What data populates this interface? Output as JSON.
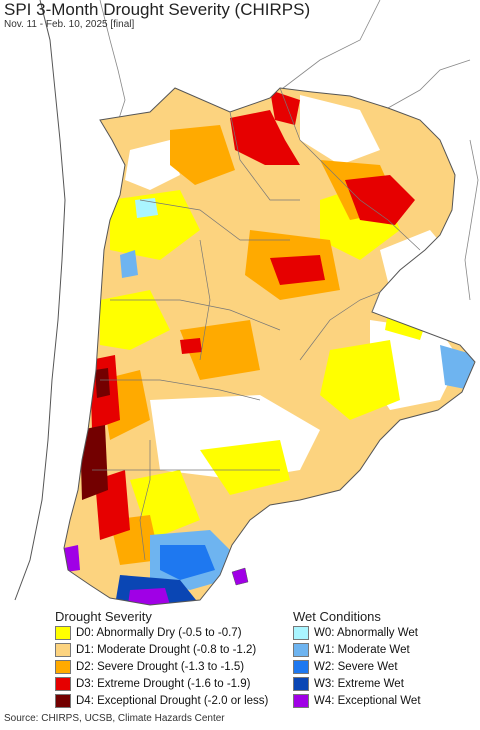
{
  "header": {
    "title": "SPI 3-Month Drought Severity (CHIRPS)",
    "subtitle": "Nov. 11 - Feb. 10, 2025 [final]"
  },
  "legend": {
    "drought_title": "Drought Severity",
    "wet_title": "Wet Conditions",
    "drought": [
      {
        "label": "D0: Abnormally Dry (-0.5 to -0.7)",
        "color": "#ffff00"
      },
      {
        "label": "D1: Moderate Drought (-0.8 to -1.2)",
        "color": "#fcd37f"
      },
      {
        "label": "D2: Severe Drought (-1.3 to -1.5)",
        "color": "#ffaa00"
      },
      {
        "label": "D3: Extreme Drought (-1.6 to -1.9)",
        "color": "#e60000"
      },
      {
        "label": "D4: Exceptional Drought (-2.0 or less)",
        "color": "#730000"
      }
    ],
    "wet": [
      {
        "label": "W0: Abnormally Wet",
        "color": "#aaf5ff"
      },
      {
        "label": "W1: Moderate Wet",
        "color": "#6eb4f0"
      },
      {
        "label": "W2: Severe Wet",
        "color": "#1e78f0"
      },
      {
        "label": "W3: Extreme Wet",
        "color": "#0a46b4"
      },
      {
        "label": "W4: Exceptional Wet",
        "color": "#a000e6"
      }
    ]
  },
  "footer": {
    "source": "Source: CHIRPS, UCSB, Climate Hazards Center"
  },
  "map_colors": {
    "ocean": "#ffffff",
    "neighbor_land": "#ffffff",
    "border": "#888888",
    "coast": "#555555"
  }
}
